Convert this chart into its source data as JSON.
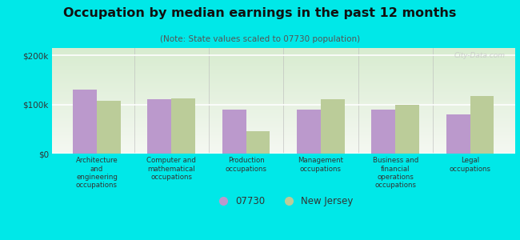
{
  "title": "Occupation by median earnings in the past 12 months",
  "subtitle": "(Note: State values scaled to 07730 population)",
  "categories": [
    "Architecture\nand\nengineering\noccupations",
    "Computer and\nmathematical\noccupations",
    "Production\noccupations",
    "Management\noccupations",
    "Business and\nfinancial\noperations\noccupations",
    "Legal\noccupations"
  ],
  "values_07730": [
    130000,
    110000,
    90000,
    90000,
    90000,
    80000
  ],
  "values_nj": [
    107000,
    113000,
    45000,
    110000,
    100000,
    118000
  ],
  "color_07730": "#bb99cc",
  "color_nj": "#bbcc99",
  "background_outer": "#00e8e8",
  "background_top": "#f5f8f2",
  "background_bottom": "#d8ecd0",
  "yticks": [
    0,
    100000,
    200000
  ],
  "ytick_labels": [
    "$0",
    "$100k",
    "$200k"
  ],
  "ylim": [
    0,
    215000
  ],
  "legend_07730": "07730",
  "legend_nj": "New Jersey",
  "bar_width": 0.32,
  "separator_color": "#bbbbbb",
  "watermark": "City-Data.com"
}
